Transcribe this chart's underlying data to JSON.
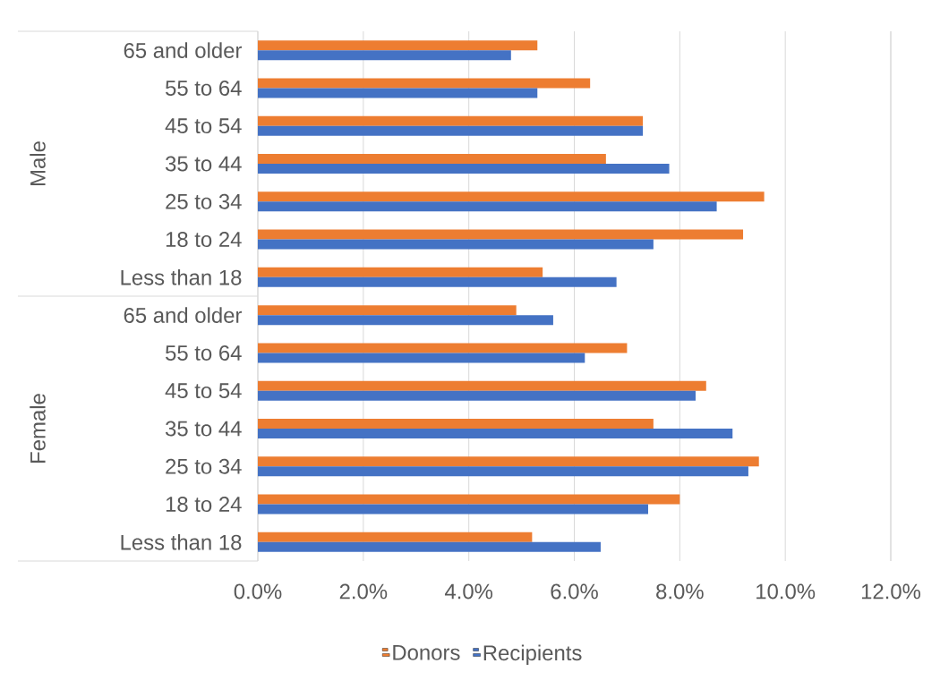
{
  "chart_data": {
    "type": "bar",
    "orientation": "horizontal",
    "categories": [
      "65 and older",
      "55 to 64",
      "45 to 54",
      "35 to 44",
      "25 to 34",
      "18 to 24",
      "Less than 18",
      "65 and older",
      "55 to 64",
      "45 to 54",
      "35 to 44",
      "25 to 34",
      "18 to 24",
      "Less than 18"
    ],
    "annotations": [
      "Male",
      "Female"
    ],
    "series": [
      {
        "name": "Donors",
        "color": "#ed7d31",
        "values": [
          5.3,
          6.3,
          7.3,
          6.6,
          9.6,
          9.2,
          5.4,
          4.9,
          7.0,
          8.5,
          7.5,
          9.5,
          8.0,
          5.2
        ]
      },
      {
        "name": "Recipients",
        "color": "#4472c4",
        "values": [
          4.8,
          5.3,
          7.3,
          7.8,
          8.7,
          7.5,
          6.8,
          5.6,
          6.2,
          8.3,
          9.0,
          9.3,
          7.4,
          6.5
        ]
      }
    ],
    "xlim": [
      0,
      12
    ],
    "xticks": [
      {
        "value": 0,
        "label": "0.0%"
      },
      {
        "value": 2,
        "label": "2.0%"
      },
      {
        "value": 4,
        "label": "4.0%"
      },
      {
        "value": 6,
        "label": "6.0%"
      },
      {
        "value": 8,
        "label": "8.0%"
      },
      {
        "value": 10,
        "label": "10.0%"
      },
      {
        "value": 12,
        "label": "12.0%"
      }
    ],
    "grid": "x",
    "legend": "bottom"
  }
}
